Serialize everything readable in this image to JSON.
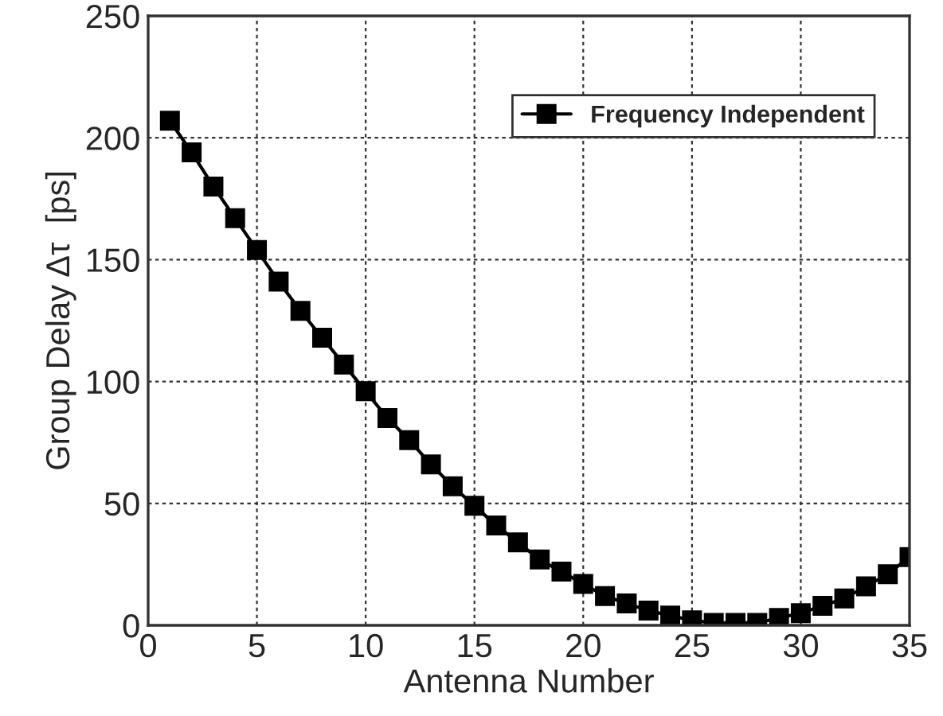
{
  "chart_data": {
    "type": "line",
    "xlabel": "Antenna Number",
    "ylabel": "Group Delay Δτ  [ps]",
    "x": [
      1,
      2,
      3,
      4,
      5,
      6,
      7,
      8,
      9,
      10,
      11,
      12,
      13,
      14,
      15,
      16,
      17,
      18,
      19,
      20,
      21,
      22,
      23,
      24,
      25,
      26,
      27,
      28,
      29,
      30,
      31,
      32,
      33,
      34,
      35
    ],
    "series": [
      {
        "name": "Frequency Independent",
        "color": "#000000",
        "values": [
          207,
          194,
          180,
          167,
          154,
          141,
          129,
          118,
          107,
          96,
          85,
          76,
          66,
          57,
          49,
          41,
          34,
          27,
          22,
          17,
          12,
          9,
          6,
          4,
          2,
          1,
          1,
          1,
          3,
          5,
          8,
          11,
          16,
          21,
          28
        ]
      }
    ],
    "xlim": [
      0,
      35
    ],
    "xticks": [
      0,
      5,
      10,
      15,
      20,
      25,
      30,
      35
    ],
    "ylim": [
      0,
      250
    ],
    "yticks": [
      0,
      50,
      100,
      150,
      200,
      250
    ],
    "grid": true,
    "legend": "top right",
    "marker": "square",
    "line_style": "solid"
  }
}
